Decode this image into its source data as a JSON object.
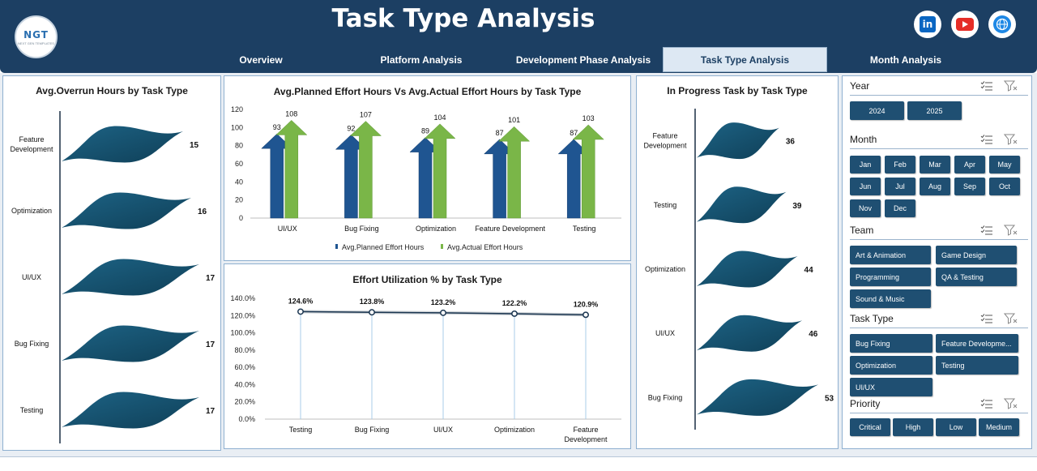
{
  "header": {
    "title": "Task Type Analysis",
    "logo_text": "NGT",
    "logo_subtext": "NEXT GEN TEMPLATES",
    "social_icons": [
      "linkedin-icon",
      "youtube-icon",
      "globe-icon"
    ]
  },
  "tabs": [
    {
      "label": "Overview",
      "active": false
    },
    {
      "label": "Platform Analysis",
      "active": false
    },
    {
      "label": "Development Phase Analysis",
      "active": false
    },
    {
      "label": "Task Type Analysis",
      "active": true
    },
    {
      "label": "Month Analysis",
      "active": false
    }
  ],
  "colors": {
    "header": "#1c3f63",
    "planned": "#1f5591",
    "actual": "#7ab648",
    "wave": "#16506e",
    "slicer_button": "#1f4f72"
  },
  "chart_data": [
    {
      "id": "overrun",
      "type": "bar",
      "title": "Avg.Overrun Hours by Task Type",
      "categories": [
        "Feature Development",
        "Optimization",
        "UI/UX",
        "Bug Fixing",
        "Testing"
      ],
      "values": [
        15,
        16,
        17,
        17,
        17
      ]
    },
    {
      "id": "effort",
      "type": "bar",
      "title": "Avg.Planned Effort Hours Vs Avg.Actual Effort Hours by Task Type",
      "categories": [
        "UI/UX",
        "Bug Fixing",
        "Optimization",
        "Feature Development",
        "Testing"
      ],
      "series": [
        {
          "name": "Avg.Planned Effort Hours",
          "values": [
            93,
            92,
            89,
            87,
            87
          ]
        },
        {
          "name": "Avg.Actual Effort Hours",
          "values": [
            108,
            107,
            104,
            101,
            103
          ]
        }
      ],
      "ylim": [
        0,
        120
      ],
      "yticks": [
        "120",
        "100",
        "80",
        "60",
        "40",
        "20",
        "0"
      ],
      "legend": "bottom"
    },
    {
      "id": "utilization",
      "type": "line",
      "title": "Effort Utilization % by Task Type",
      "categories": [
        "Testing",
        "Bug Fixing",
        "UI/UX",
        "Optimization",
        "Feature Development"
      ],
      "values": [
        124.6,
        123.8,
        123.2,
        122.2,
        120.9
      ],
      "value_labels": [
        "124.6%",
        "123.8%",
        "123.2%",
        "122.2%",
        "120.9%"
      ],
      "ylim": [
        0,
        140
      ],
      "yticks": [
        "140.0%",
        "120.0%",
        "100.0%",
        "80.0%",
        "60.0%",
        "40.0%",
        "20.0%",
        "0.0%"
      ]
    },
    {
      "id": "inprogress",
      "type": "bar",
      "title": "In Progress Task by Task Type",
      "categories": [
        "Feature Development",
        "Testing",
        "Optimization",
        "UI/UX",
        "Bug Fixing"
      ],
      "values": [
        36,
        39,
        44,
        46,
        53
      ]
    }
  ],
  "slicers": [
    {
      "title": "Year",
      "items": [
        "2024",
        "2025"
      ]
    },
    {
      "title": "Month",
      "items": [
        "Jan",
        "Feb",
        "Mar",
        "Apr",
        "May",
        "Jun",
        "Jul",
        "Aug",
        "Sep",
        "Oct",
        "Nov",
        "Dec"
      ]
    },
    {
      "title": "Team",
      "items": [
        "Art & Animation",
        "Game Design",
        "Programming",
        "QA & Testing",
        "Sound & Music"
      ]
    },
    {
      "title": "Task Type",
      "items": [
        "Bug Fixing",
        "Feature Developme...",
        "Optimization",
        "Testing",
        "UI/UX"
      ]
    },
    {
      "title": "Priority",
      "items": [
        "Critical",
        "High",
        "Low",
        "Medium"
      ]
    }
  ]
}
